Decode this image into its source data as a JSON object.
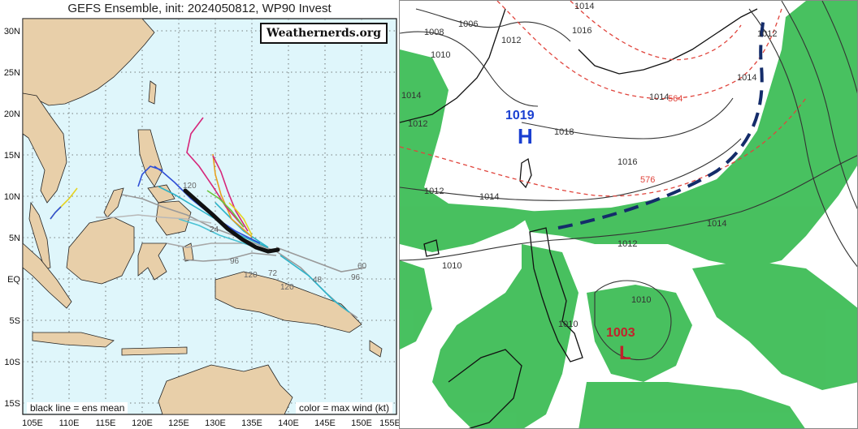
{
  "left_map": {
    "title": "GEFS Ensemble, init: 2024050812, WP90 Invest",
    "brand": "Weathernerds.org",
    "legend_left": "black line = ens mean",
    "legend_right": "color = max wind (kt)",
    "lat_labels": [
      "30N",
      "25N",
      "20N",
      "15N",
      "10N",
      "5N",
      "EQ",
      "5S",
      "10S",
      "15S"
    ],
    "lon_labels": [
      "105E",
      "110E",
      "115E",
      "120E",
      "125E",
      "130E",
      "135E",
      "140E",
      "145E",
      "150E",
      "155E"
    ],
    "track_labels": [
      "96",
      "120",
      "48",
      "60",
      "96",
      "120",
      "24",
      "72",
      "120"
    ],
    "colors": {
      "ocean": "#dff6fb",
      "land": "#e8cfa9",
      "mean_track": "#111111",
      "grid": "#555555"
    }
  },
  "right_map": {
    "high_label": "1019",
    "high_letter": "H",
    "low_label": "1003",
    "low_letter": "L",
    "isobar_labels": [
      "1008",
      "1006",
      "1010",
      "1012",
      "1014",
      "1016",
      "1012",
      "1014",
      "1014",
      "1018",
      "1016",
      "1012",
      "1014",
      "1012",
      "1014",
      "1012",
      "1010",
      "1010",
      "1010",
      "1014"
    ],
    "height_labels": [
      "564",
      "576"
    ],
    "colors": {
      "precip": "#2fb84a",
      "high": "#1a3fd1",
      "low": "#c2222b",
      "front": "#142c6a",
      "height": "#e0443c"
    }
  }
}
